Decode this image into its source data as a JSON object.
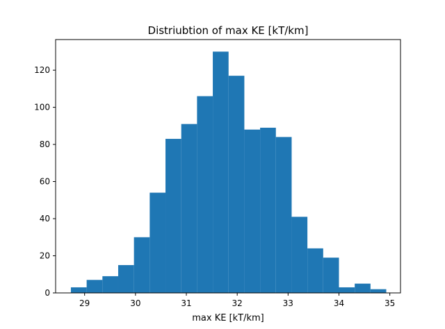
{
  "chart_data": {
    "type": "bar",
    "subtype": "histogram",
    "title": "Distriubtion of max KE [kT/km]",
    "xlabel": "max KE [kT/km]",
    "ylabel": "",
    "xlim": [
      28.43,
      35.21
    ],
    "ylim": [
      0,
      136.5
    ],
    "xticks": [
      29,
      30,
      31,
      32,
      33,
      34,
      35
    ],
    "yticks": [
      0,
      20,
      40,
      60,
      80,
      100,
      120
    ],
    "bin_edges": [
      28.73,
      29.04,
      29.35,
      29.66,
      29.97,
      30.28,
      30.59,
      30.9,
      31.21,
      31.52,
      31.83,
      32.14,
      32.45,
      32.76,
      33.07,
      33.38,
      33.69,
      34.0,
      34.31,
      34.62,
      34.93
    ],
    "counts": [
      3,
      7,
      9,
      15,
      30,
      54,
      83,
      91,
      106,
      130,
      117,
      88,
      89,
      84,
      41,
      24,
      19,
      3,
      5,
      2
    ],
    "bar_color": "#1f77b4",
    "grid": false,
    "legend": "none"
  }
}
